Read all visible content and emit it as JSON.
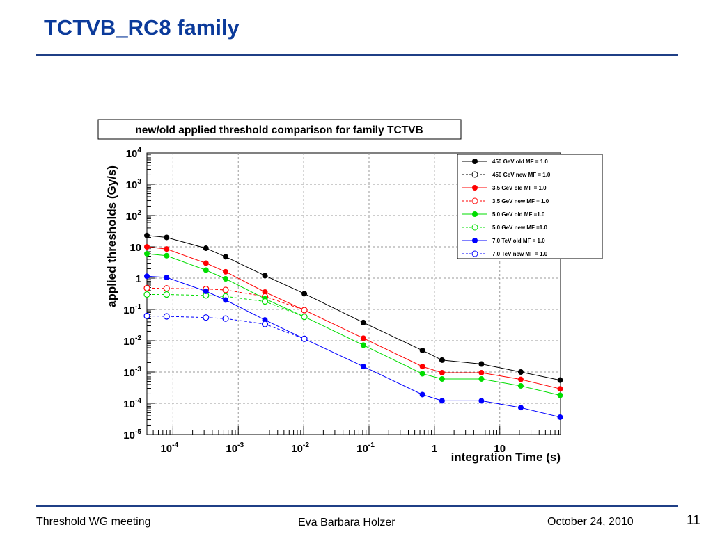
{
  "slide": {
    "title": "TCTVB_RC8 family",
    "footer_left": "Threshold WG meeting",
    "footer_center": "Eva Barbara Holzer",
    "footer_date": "October 24, 2010",
    "page_number": "11"
  },
  "chart_data": {
    "type": "line",
    "title": "new/old applied threshold comparison for family TCTVB",
    "xlabel": "integration Time (s)",
    "ylabel": "applied thresholds  (Gy/s)",
    "xscale": "log",
    "yscale": "log",
    "xlim": [
      4e-05,
      85
    ],
    "ylim": [
      1e-05,
      10000.0
    ],
    "grid": true,
    "legend_position": "top-right",
    "x_ticks": [
      {
        "value": 0.0001,
        "base": "10",
        "exp": "-4"
      },
      {
        "value": 0.001,
        "base": "10",
        "exp": "-3"
      },
      {
        "value": 0.01,
        "base": "10",
        "exp": "-2"
      },
      {
        "value": 0.1,
        "base": "10",
        "exp": "-1"
      },
      {
        "value": 1,
        "base": "1",
        "exp": ""
      },
      {
        "value": 10,
        "base": "10",
        "exp": ""
      }
    ],
    "y_ticks": [
      {
        "value": 10000.0,
        "base": "10",
        "exp": "4"
      },
      {
        "value": 1000.0,
        "base": "10",
        "exp": "3"
      },
      {
        "value": 100.0,
        "base": "10",
        "exp": "2"
      },
      {
        "value": 10,
        "base": "10",
        "exp": ""
      },
      {
        "value": 1,
        "base": "1",
        "exp": ""
      },
      {
        "value": 0.1,
        "base": "10",
        "exp": "-1"
      },
      {
        "value": 0.01,
        "base": "10",
        "exp": "-2"
      },
      {
        "value": 0.001,
        "base": "10",
        "exp": "-3"
      },
      {
        "value": 0.0001,
        "base": "10",
        "exp": "-4"
      },
      {
        "value": 1e-05,
        "base": "10",
        "exp": "-5"
      }
    ],
    "series": [
      {
        "name": "450 GeV old MF = 1.0",
        "color": "#000000",
        "style": "solid",
        "marker": "filled",
        "x": [
          4e-05,
          8e-05,
          0.00032,
          0.00064,
          0.00256,
          0.01024,
          0.08192,
          0.65536,
          1.31,
          5.24,
          20.97,
          83.89
        ],
        "y": [
          23,
          20,
          9,
          4.8,
          1.2,
          0.32,
          0.038,
          0.0049,
          0.0024,
          0.0018,
          0.001,
          0.00055
        ]
      },
      {
        "name": "450 GeV new MF = 1.0",
        "color": "#000000",
        "style": "dashed",
        "marker": "open",
        "x": [],
        "y": []
      },
      {
        "name": "3.5 GeV old MF = 1.0",
        "color": "#ff0000",
        "style": "solid",
        "marker": "filled",
        "x": [
          4e-05,
          8e-05,
          0.00032,
          0.00064,
          0.00256,
          0.01024,
          0.08192,
          0.65536,
          1.31,
          5.24,
          20.97,
          83.89
        ],
        "y": [
          10,
          8.5,
          3,
          1.6,
          0.36,
          0.095,
          0.012,
          0.0015,
          0.00095,
          0.00095,
          0.00058,
          0.00029
        ]
      },
      {
        "name": "3.5 GeV new MF = 1.0",
        "color": "#ff0000",
        "style": "dashed",
        "marker": "open",
        "x": [
          4e-05,
          8e-05,
          0.00032,
          0.00064,
          0.00256,
          0.01024
        ],
        "y": [
          0.48,
          0.47,
          0.45,
          0.42,
          0.26,
          0.095
        ]
      },
      {
        "name": "5.0 GeV old MF =1.0",
        "color": "#00dd00",
        "style": "solid",
        "marker": "filled",
        "x": [
          4e-05,
          8e-05,
          0.00032,
          0.00064,
          0.00256,
          0.01024,
          0.08192,
          0.65536,
          1.31,
          5.24,
          20.97,
          83.89
        ],
        "y": [
          6,
          5.2,
          1.8,
          0.95,
          0.22,
          0.058,
          0.0072,
          0.00088,
          0.0006,
          0.0006,
          0.00036,
          0.00018
        ]
      },
      {
        "name": "5.0 GeV new MF =1.0",
        "color": "#00dd00",
        "style": "dashed",
        "marker": "open",
        "x": [
          4e-05,
          8e-05,
          0.00032,
          0.00064,
          0.00256,
          0.01024
        ],
        "y": [
          0.3,
          0.3,
          0.28,
          0.26,
          0.18,
          0.058
        ]
      },
      {
        "name": "7.0 TeV old MF = 1.0",
        "color": "#0000ff",
        "style": "solid",
        "marker": "filled",
        "x": [
          4e-05,
          8e-05,
          0.00032,
          0.00064,
          0.00256,
          0.01024,
          0.08192,
          0.65536,
          1.31,
          5.24,
          20.97,
          83.89
        ],
        "y": [
          1.15,
          1.05,
          0.38,
          0.2,
          0.046,
          0.0115,
          0.0015,
          0.00019,
          0.00012,
          0.00012,
          7.3e-05,
          3.6e-05
        ]
      },
      {
        "name": "7.0 TeV new MF = 1.0",
        "color": "#0000ff",
        "style": "dashed",
        "marker": "open",
        "x": [
          4e-05,
          8e-05,
          0.00032,
          0.00064,
          0.00256,
          0.01024
        ],
        "y": [
          0.062,
          0.06,
          0.055,
          0.051,
          0.034,
          0.0115
        ]
      }
    ]
  }
}
